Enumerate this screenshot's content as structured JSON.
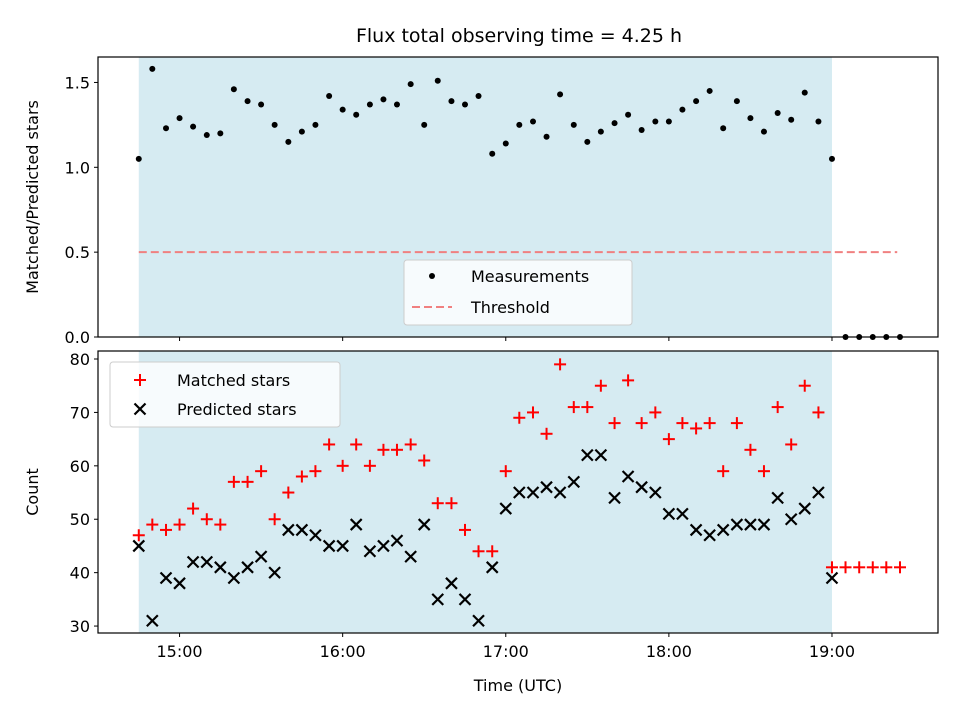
{
  "chart_data": [
    {
      "type": "scatter",
      "title": "Flux total observing time = 4.25 h",
      "xlabel": "",
      "ylabel": "Matched/Predicted stars",
      "ylim": [
        0,
        1.65
      ],
      "yticks": [
        0.0,
        0.5,
        1.0,
        1.5
      ],
      "ytick_labels": [
        "0.0",
        "0.5",
        "1.0",
        "1.5"
      ],
      "x_unit": "hours UTC",
      "xlim": [
        14.5,
        19.65
      ],
      "shaded_span": [
        14.75,
        19.0
      ],
      "legend": [
        "Measurements",
        "Threshold"
      ],
      "threshold": {
        "name": "Threshold",
        "y": 0.5,
        "x_range": [
          14.75,
          19.4
        ],
        "color": "#f08080"
      },
      "series": [
        {
          "name": "Measurements",
          "color": "#000000",
          "x": [
            14.75,
            14.833,
            14.917,
            15.0,
            15.083,
            15.167,
            15.25,
            15.333,
            15.417,
            15.5,
            15.583,
            15.667,
            15.75,
            15.833,
            15.917,
            16.0,
            16.083,
            16.167,
            16.25,
            16.333,
            16.417,
            16.5,
            16.583,
            16.667,
            16.75,
            16.833,
            16.917,
            17.0,
            17.083,
            17.167,
            17.25,
            17.333,
            17.417,
            17.5,
            17.583,
            17.667,
            17.75,
            17.833,
            17.917,
            18.0,
            18.083,
            18.167,
            18.25,
            18.333,
            18.417,
            18.5,
            18.583,
            18.667,
            18.75,
            18.833,
            18.917,
            19.0,
            19.083,
            19.167,
            19.25,
            19.333,
            19.417
          ],
          "values": [
            1.05,
            1.58,
            1.23,
            1.29,
            1.24,
            1.19,
            1.2,
            1.46,
            1.39,
            1.37,
            1.25,
            1.15,
            1.21,
            1.25,
            1.42,
            1.34,
            1.31,
            1.37,
            1.4,
            1.37,
            1.49,
            1.25,
            1.51,
            1.39,
            1.37,
            1.42,
            1.08,
            1.14,
            1.25,
            1.27,
            1.18,
            1.43,
            1.25,
            1.15,
            1.21,
            1.26,
            1.31,
            1.22,
            1.27,
            1.27,
            1.34,
            1.39,
            1.45,
            1.23,
            1.39,
            1.29,
            1.21,
            1.32,
            1.28,
            1.44,
            1.27,
            1.05,
            0.0,
            0.0,
            0.0,
            0.0,
            0.0
          ]
        }
      ]
    },
    {
      "type": "scatter",
      "title": "",
      "xlabel": "Time (UTC)",
      "ylabel": "Count",
      "ylim": [
        28.7,
        81.5
      ],
      "yticks": [
        30,
        40,
        50,
        60,
        70,
        80
      ],
      "ytick_labels": [
        "30",
        "40",
        "50",
        "60",
        "70",
        "80"
      ],
      "x_unit": "hours UTC",
      "xlim": [
        14.5,
        19.65
      ],
      "xticks": [
        15,
        16,
        17,
        18,
        19
      ],
      "xtick_labels": [
        "15:00",
        "16:00",
        "17:00",
        "18:00",
        "19:00"
      ],
      "shaded_span": [
        14.75,
        19.0
      ],
      "legend": [
        "Matched stars",
        "Predicted stars"
      ],
      "series": [
        {
          "name": "Matched stars",
          "marker": "+",
          "color": "#ff0000",
          "x": [
            14.75,
            14.833,
            14.917,
            15.0,
            15.083,
            15.167,
            15.25,
            15.333,
            15.417,
            15.5,
            15.583,
            15.667,
            15.75,
            15.833,
            15.917,
            16.0,
            16.083,
            16.167,
            16.25,
            16.333,
            16.417,
            16.5,
            16.583,
            16.667,
            16.75,
            16.833,
            16.917,
            17.0,
            17.083,
            17.167,
            17.25,
            17.333,
            17.417,
            17.5,
            17.583,
            17.667,
            17.75,
            17.833,
            17.917,
            18.0,
            18.083,
            18.167,
            18.25,
            18.333,
            18.417,
            18.5,
            18.583,
            18.667,
            18.75,
            18.833,
            18.917,
            19.0,
            19.083,
            19.167,
            19.25,
            19.333,
            19.417
          ],
          "values": [
            47,
            49,
            48,
            49,
            52,
            50,
            49,
            57,
            57,
            59,
            50,
            55,
            58,
            59,
            64,
            60,
            64,
            60,
            63,
            63,
            64,
            61,
            53,
            53,
            48,
            44,
            44,
            59,
            69,
            70,
            66,
            79,
            71,
            71,
            75,
            68,
            76,
            68,
            70,
            65,
            68,
            67,
            68,
            59,
            68,
            63,
            59,
            71,
            64,
            75,
            70,
            41,
            41,
            41,
            41,
            41,
            41
          ]
        },
        {
          "name": "Predicted stars",
          "marker": "x",
          "color": "#000000",
          "x": [
            14.75,
            14.833,
            14.917,
            15.0,
            15.083,
            15.167,
            15.25,
            15.333,
            15.417,
            15.5,
            15.583,
            15.667,
            15.75,
            15.833,
            15.917,
            16.0,
            16.083,
            16.167,
            16.25,
            16.333,
            16.417,
            16.5,
            16.583,
            16.667,
            16.75,
            16.833,
            16.917,
            17.0,
            17.083,
            17.167,
            17.25,
            17.333,
            17.417,
            17.5,
            17.583,
            17.667,
            17.75,
            17.833,
            17.917,
            18.0,
            18.083,
            18.167,
            18.25,
            18.333,
            18.417,
            18.5,
            18.583,
            18.667,
            18.75,
            18.833,
            18.917,
            19.0
          ],
          "values": [
            45,
            31,
            39,
            38,
            42,
            42,
            41,
            39,
            41,
            43,
            40,
            48,
            48,
            47,
            45,
            45,
            49,
            44,
            45,
            46,
            43,
            49,
            35,
            38,
            35,
            31,
            41,
            52,
            55,
            55,
            56,
            55,
            57,
            62,
            62,
            54,
            58,
            56,
            55,
            51,
            51,
            48,
            47,
            48,
            49,
            49,
            49,
            54,
            50,
            52,
            55,
            39
          ]
        }
      ]
    }
  ]
}
